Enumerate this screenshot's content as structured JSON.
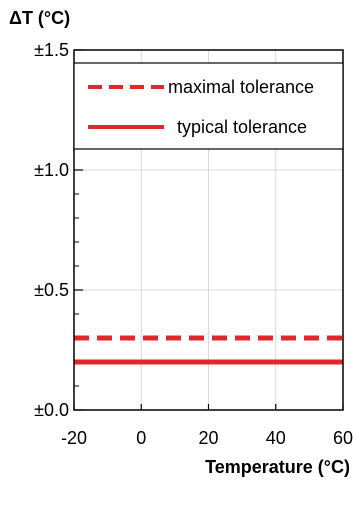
{
  "chart_data": {
    "type": "line",
    "ylabel": "ΔT (°C)",
    "xlabel": "Temperature (°C)",
    "xlim": [
      -20,
      60
    ],
    "ylim": [
      0,
      1.5
    ],
    "x_ticks": [
      -20,
      0,
      20,
      40,
      60
    ],
    "x_tick_labels": [
      "-20",
      "0",
      "20",
      "40",
      "60"
    ],
    "y_ticks": [
      0,
      0.5,
      1.0,
      1.5
    ],
    "y_tick_labels": [
      "±0.0",
      "±0.5",
      "±1.0",
      "±1.5"
    ],
    "grid": true,
    "legend_position": "top",
    "series": [
      {
        "name": "maximal tolerance",
        "style": "dashed",
        "color": "#e3262b",
        "x": [
          -20,
          60
        ],
        "y": [
          0.3,
          0.3
        ]
      },
      {
        "name": "typical tolerance",
        "style": "solid",
        "color": "#e3262b",
        "x": [
          -20,
          60
        ],
        "y": [
          0.2,
          0.2
        ]
      }
    ]
  }
}
